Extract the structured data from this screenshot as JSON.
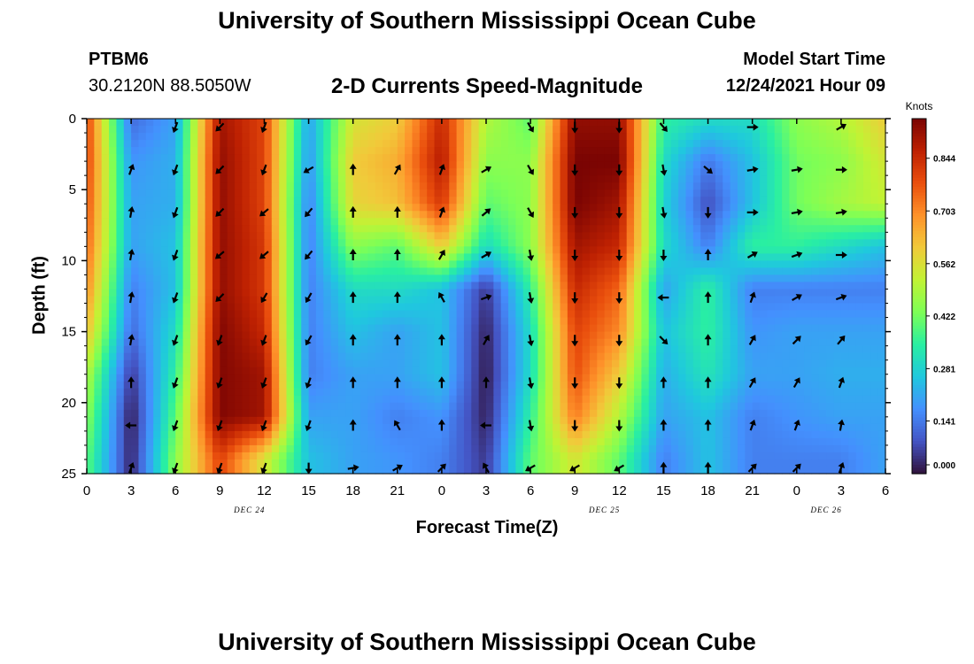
{
  "header": {
    "title": "University of Southern Mississippi Ocean Cube",
    "station_id": "PTBM6",
    "station_coords": "30.2120N  88.5050W",
    "chart_subtitle": "2-D Currents Speed-Magnitude",
    "model_start_label": "Model Start Time",
    "model_start_value": "12/24/2021 Hour 09"
  },
  "footer": {
    "title_repeat": "University of Southern Mississippi Ocean Cube"
  },
  "colors": {
    "scale": [
      "#30123b",
      "#4454c4",
      "#4490fe",
      "#1fc8de",
      "#29efa2",
      "#7dff56",
      "#c1f334",
      "#f1ca3a",
      "#fe922a",
      "#ea4f0d",
      "#be2102",
      "#7a0403"
    ],
    "arrow": "#000000",
    "frame": "#000000"
  },
  "chart_data": {
    "type": "heatmap",
    "title": "2-D Currents Speed-Magnitude",
    "xlabel": "Forecast Time(Z)",
    "ylabel": "Depth (ft)",
    "x_ticks": [
      "0",
      "3",
      "6",
      "9",
      "12",
      "15",
      "18",
      "21",
      "0",
      "3",
      "6",
      "9",
      "12",
      "15",
      "18",
      "21",
      "0",
      "3",
      "6"
    ],
    "x_range_hours": [
      0,
      54
    ],
    "date_labels": [
      {
        "text": "DEC 24",
        "hour": 11
      },
      {
        "text": "DEC 25",
        "hour": 35
      },
      {
        "text": "DEC 26",
        "hour": 50
      }
    ],
    "y_ticks": [
      "0",
      "5",
      "10",
      "15",
      "20",
      "25"
    ],
    "y_range_ft": [
      0,
      25
    ],
    "colorbar": {
      "label": "Knots",
      "ticks": [
        "0.844",
        "0.703",
        "0.562",
        "0.422",
        "0.281",
        "0.141",
        "0.000"
      ],
      "range": [
        0,
        0.95
      ]
    },
    "depth_rows_ft": [
      0,
      3,
      6,
      9,
      12,
      15,
      18,
      21,
      24
    ],
    "hours": [
      0,
      3,
      6,
      9,
      12,
      15,
      18,
      21,
      24,
      27,
      30,
      33,
      36,
      39,
      42,
      45,
      48,
      51,
      54
    ],
    "speed_knots": [
      [
        0.8,
        0.12,
        0.2,
        0.9,
        0.8,
        0.2,
        0.55,
        0.6,
        0.85,
        0.5,
        0.4,
        0.92,
        0.92,
        0.35,
        0.3,
        0.3,
        0.45,
        0.5,
        0.6
      ],
      [
        0.8,
        0.18,
        0.22,
        0.92,
        0.8,
        0.18,
        0.6,
        0.65,
        0.88,
        0.45,
        0.45,
        0.95,
        0.95,
        0.3,
        0.14,
        0.25,
        0.42,
        0.45,
        0.55
      ],
      [
        0.78,
        0.2,
        0.22,
        0.92,
        0.8,
        0.15,
        0.58,
        0.62,
        0.82,
        0.4,
        0.45,
        0.95,
        0.9,
        0.28,
        0.08,
        0.25,
        0.42,
        0.48,
        0.52
      ],
      [
        0.75,
        0.2,
        0.25,
        0.92,
        0.82,
        0.15,
        0.45,
        0.4,
        0.6,
        0.3,
        0.45,
        0.9,
        0.85,
        0.3,
        0.15,
        0.35,
        0.35,
        0.3,
        0.25
      ],
      [
        0.7,
        0.15,
        0.25,
        0.92,
        0.82,
        0.15,
        0.3,
        0.3,
        0.25,
        0.05,
        0.35,
        0.85,
        0.75,
        0.2,
        0.35,
        0.15,
        0.15,
        0.15,
        0.15
      ],
      [
        0.62,
        0.12,
        0.3,
        0.94,
        0.85,
        0.15,
        0.25,
        0.2,
        0.25,
        0.02,
        0.3,
        0.8,
        0.7,
        0.25,
        0.35,
        0.18,
        0.2,
        0.2,
        0.2
      ],
      [
        0.5,
        0.05,
        0.35,
        0.94,
        0.9,
        0.15,
        0.2,
        0.2,
        0.25,
        0.01,
        0.3,
        0.78,
        0.6,
        0.22,
        0.32,
        0.2,
        0.2,
        0.22,
        0.22
      ],
      [
        0.45,
        0.01,
        0.4,
        0.94,
        0.9,
        0.2,
        0.2,
        0.15,
        0.18,
        0.02,
        0.35,
        0.72,
        0.5,
        0.2,
        0.25,
        0.15,
        0.18,
        0.2,
        0.2
      ],
      [
        0.4,
        0.02,
        0.45,
        0.8,
        0.55,
        0.25,
        0.2,
        0.18,
        0.15,
        0.05,
        0.4,
        0.55,
        0.4,
        0.15,
        0.25,
        0.15,
        0.15,
        0.15,
        0.2
      ]
    ],
    "arrow_hours": [
      0,
      3,
      6,
      9,
      12,
      15,
      18,
      21,
      24,
      27,
      30,
      33,
      36,
      39,
      42,
      45,
      48,
      51,
      54
    ],
    "arrow_depths_ft": [
      0,
      3,
      6,
      9,
      12,
      15,
      18,
      21,
      24
    ],
    "arrow_direction_deg": [
      [
        null,
        null,
        200,
        225,
        200,
        null,
        null,
        null,
        null,
        null,
        150,
        180,
        180,
        140,
        null,
        90,
        null,
        60,
        null
      ],
      [
        null,
        20,
        200,
        225,
        200,
        240,
        0,
        30,
        20,
        60,
        150,
        180,
        180,
        170,
        130,
        80,
        80,
        90,
        null
      ],
      [
        null,
        10,
        200,
        225,
        230,
        220,
        0,
        0,
        20,
        50,
        150,
        180,
        180,
        170,
        180,
        90,
        80,
        80,
        null
      ],
      [
        null,
        10,
        200,
        230,
        230,
        220,
        0,
        0,
        30,
        60,
        170,
        180,
        180,
        180,
        0,
        60,
        70,
        90,
        null
      ],
      [
        null,
        10,
        200,
        225,
        210,
        210,
        0,
        0,
        330,
        70,
        170,
        180,
        180,
        270,
        0,
        20,
        60,
        70,
        null
      ],
      [
        null,
        10,
        200,
        200,
        200,
        210,
        0,
        0,
        0,
        30,
        170,
        180,
        180,
        135,
        0,
        30,
        45,
        40,
        null
      ],
      [
        null,
        0,
        200,
        200,
        200,
        200,
        0,
        0,
        0,
        0,
        170,
        180,
        180,
        0,
        0,
        30,
        30,
        20,
        null
      ],
      [
        null,
        270,
        200,
        200,
        200,
        200,
        0,
        330,
        0,
        270,
        170,
        180,
        180,
        0,
        0,
        20,
        20,
        10,
        null
      ],
      [
        null,
        20,
        200,
        200,
        200,
        180,
        80,
        60,
        45,
        330,
        240,
        240,
        240,
        0,
        0,
        45,
        45,
        20,
        null
      ]
    ]
  }
}
